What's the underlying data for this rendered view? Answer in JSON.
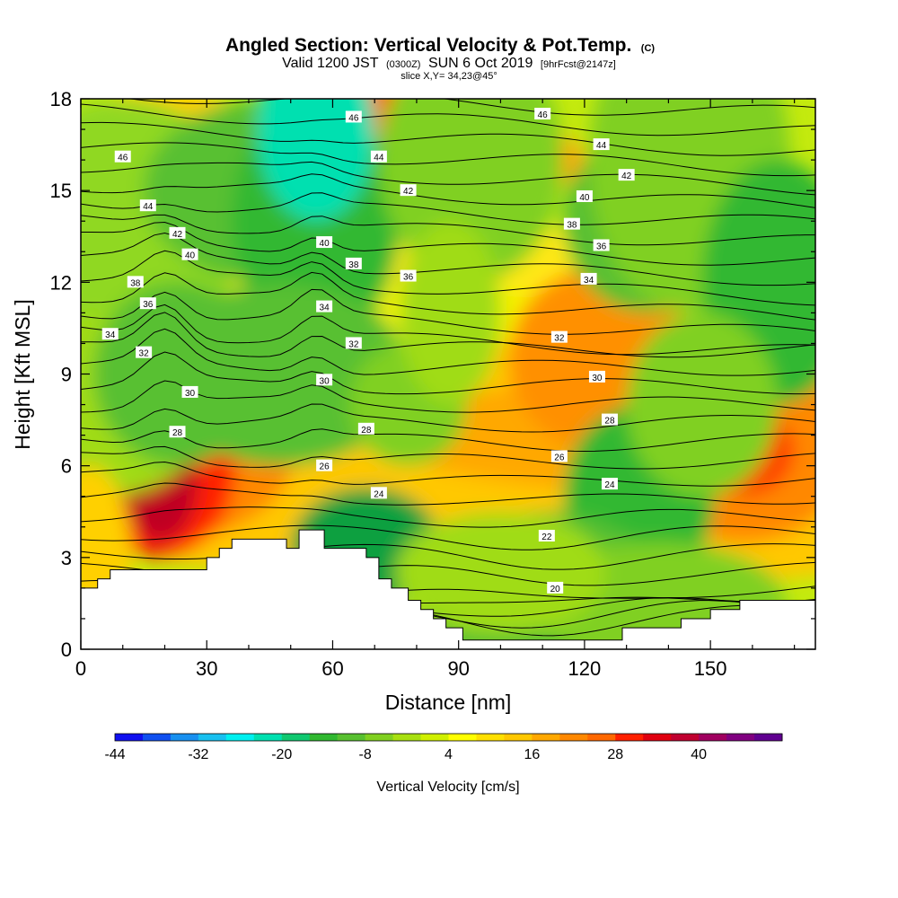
{
  "chart_data": {
    "type": "heatmap",
    "title": {
      "main": "Angled Section: Vertical Velocity & Pot.Temp.",
      "main_suffix": "(C)",
      "valid_prefix": "Valid 1200 JST",
      "valid_small": "(0300Z)",
      "valid_date": "SUN 6 Oct 2019",
      "valid_fcst": "[9hrFcst@2147z]",
      "slice": "slice X,Y= 34,23@45°"
    },
    "xlabel": "Distance [nm]",
    "ylabel": "Height [Kft MSL]",
    "xlim": [
      0,
      175
    ],
    "ylim": [
      0,
      18
    ],
    "x_ticks": [
      "0",
      "30",
      "60",
      "90",
      "120",
      "150"
    ],
    "y_ticks": [
      "0",
      "3",
      "6",
      "9",
      "12",
      "15",
      "18"
    ],
    "colorbar": {
      "label": "Vertical Velocity [cm/s]",
      "tick_labels": [
        "-44",
        "-32",
        "-20",
        "-8",
        "4",
        "16",
        "28",
        "40"
      ],
      "colors": [
        "#1010f0",
        "#1050f0",
        "#1890f0",
        "#18c0f0",
        "#00f0f0",
        "#00e0b0",
        "#10c870",
        "#30b830",
        "#58c030",
        "#80d020",
        "#a8e010",
        "#d0f000",
        "#ffff00",
        "#ffe000",
        "#ffc800",
        "#ffa800",
        "#ff8800",
        "#ff6800",
        "#ff2000",
        "#e00010",
        "#c00030",
        "#a00060",
        "#800080",
        "#600090"
      ]
    },
    "terrain": [
      [
        0,
        2.0
      ],
      [
        4,
        2.0
      ],
      [
        4,
        2.3
      ],
      [
        7,
        2.3
      ],
      [
        7,
        2.6
      ],
      [
        30,
        2.6
      ],
      [
        30,
        3.0
      ],
      [
        33,
        3.0
      ],
      [
        33,
        3.3
      ],
      [
        36,
        3.3
      ],
      [
        36,
        3.6
      ],
      [
        49,
        3.6
      ],
      [
        49,
        3.3
      ],
      [
        52,
        3.3
      ],
      [
        52,
        3.9
      ],
      [
        58,
        3.9
      ],
      [
        58,
        3.3
      ],
      [
        68,
        3.3
      ],
      [
        68,
        3.0
      ],
      [
        71,
        3.0
      ],
      [
        71,
        2.3
      ],
      [
        74,
        2.3
      ],
      [
        74,
        2.0
      ],
      [
        78,
        2.0
      ],
      [
        78,
        1.6
      ],
      [
        81,
        1.6
      ],
      [
        81,
        1.3
      ],
      [
        84,
        1.3
      ],
      [
        84,
        1.0
      ],
      [
        87,
        1.0
      ],
      [
        87,
        0.7
      ],
      [
        91,
        0.7
      ],
      [
        91,
        0.3
      ],
      [
        129,
        0.3
      ],
      [
        129,
        0.7
      ],
      [
        143,
        0.7
      ],
      [
        143,
        1.0
      ],
      [
        150,
        1.0
      ],
      [
        150,
        1.3
      ],
      [
        157,
        1.3
      ],
      [
        157,
        1.6
      ],
      [
        175,
        1.6
      ]
    ],
    "isentropes": [
      20,
      22,
      24,
      26,
      28,
      30,
      32,
      34,
      36,
      38,
      40,
      42,
      44,
      46
    ],
    "isentrope_labels": [
      {
        "text": "46",
        "x": 10,
        "y": 16.1
      },
      {
        "text": "44",
        "x": 16,
        "y": 14.5
      },
      {
        "text": "42",
        "x": 23,
        "y": 13.6
      },
      {
        "text": "40",
        "x": 26,
        "y": 12.9
      },
      {
        "text": "38",
        "x": 13,
        "y": 12.0
      },
      {
        "text": "36",
        "x": 16,
        "y": 11.3
      },
      {
        "text": "34",
        "x": 7,
        "y": 10.3
      },
      {
        "text": "32",
        "x": 15,
        "y": 9.7
      },
      {
        "text": "30",
        "x": 26,
        "y": 8.4
      },
      {
        "text": "28",
        "x": 23,
        "y": 7.1
      },
      {
        "text": "46",
        "x": 65,
        "y": 17.4
      },
      {
        "text": "44",
        "x": 71,
        "y": 16.1
      },
      {
        "text": "42",
        "x": 78,
        "y": 15.0
      },
      {
        "text": "40",
        "x": 58,
        "y": 13.3
      },
      {
        "text": "38",
        "x": 65,
        "y": 12.6
      },
      {
        "text": "36",
        "x": 78,
        "y": 12.2
      },
      {
        "text": "34",
        "x": 58,
        "y": 11.2
      },
      {
        "text": "32",
        "x": 65,
        "y": 10.0
      },
      {
        "text": "30",
        "x": 58,
        "y": 8.8
      },
      {
        "text": "28",
        "x": 68,
        "y": 7.2
      },
      {
        "text": "26",
        "x": 58,
        "y": 6.0
      },
      {
        "text": "24",
        "x": 71,
        "y": 5.1
      },
      {
        "text": "46",
        "x": 110,
        "y": 17.5
      },
      {
        "text": "44",
        "x": 124,
        "y": 16.5
      },
      {
        "text": "42",
        "x": 130,
        "y": 15.5
      },
      {
        "text": "40",
        "x": 120,
        "y": 14.8
      },
      {
        "text": "38",
        "x": 117,
        "y": 13.9
      },
      {
        "text": "36",
        "x": 124,
        "y": 13.2
      },
      {
        "text": "34",
        "x": 121,
        "y": 12.1
      },
      {
        "text": "32",
        "x": 114,
        "y": 10.2
      },
      {
        "text": "30",
        "x": 123,
        "y": 8.9
      },
      {
        "text": "28",
        "x": 126,
        "y": 7.5
      },
      {
        "text": "26",
        "x": 114,
        "y": 6.3
      },
      {
        "text": "24",
        "x": 126,
        "y": 5.4
      },
      {
        "text": "22",
        "x": 111,
        "y": 3.7
      },
      {
        "text": "20",
        "x": 113,
        "y": 2.0
      }
    ]
  }
}
